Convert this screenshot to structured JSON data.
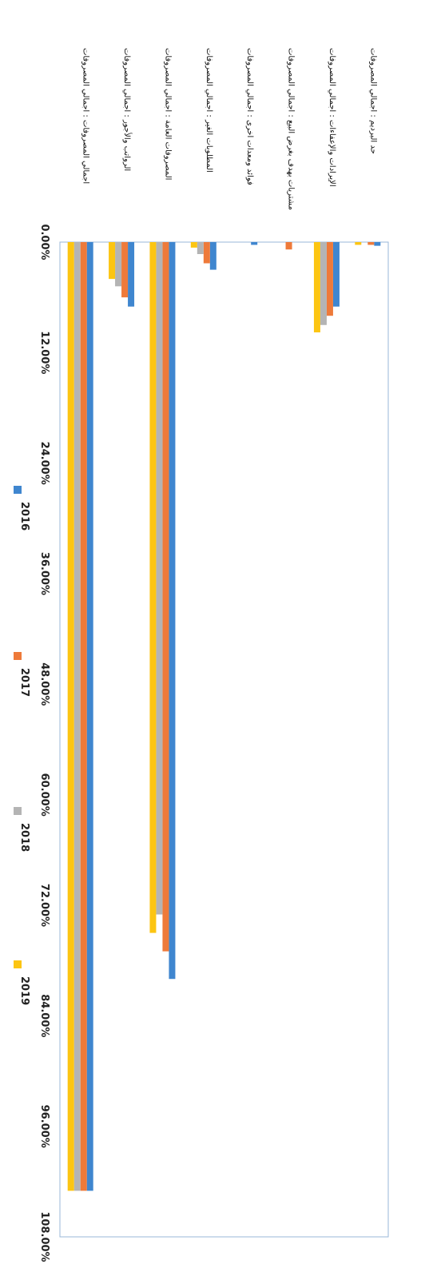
{
  "chart_data": {
    "type": "bar",
    "orientation": "horizontal",
    "title": "",
    "xlabel": "",
    "ylabel": "",
    "xlim": [
      0,
      108
    ],
    "tick_values": [
      0,
      12,
      24,
      36,
      48,
      60,
      72,
      84,
      96,
      108
    ],
    "tick_labels": [
      "0.00%",
      "12.00%",
      "24.00%",
      "36.00%",
      "48.00%",
      "60.00%",
      "72.00%",
      "84.00%",
      "96.00%",
      "108.00%"
    ],
    "grid": false,
    "legend_position": "bottom",
    "categories": [
      "حد البرديم : اجمالي المصروفات",
      "الإيرادات والإعفاءات : اجمالي المصروفات",
      "مشتريات بهدف بغرض البيع : اجمالي المصروفات",
      "فوائد ومعدات اخرى : اجمالي المصروفات",
      "المطلوبات الغير : اجمالي المصروفات",
      "المصروفات العامة : اجمالي المصروفات",
      "الرواتب والأجور : اجمالي المصروفات",
      "اجمالي المصروفات : اجمالي المصروفات"
    ],
    "series": [
      {
        "name": "2016",
        "color": "#3f86cf",
        "values": [
          0.4,
          7.0,
          0.0,
          0.3,
          3.0,
          80.0,
          7.0,
          103.0
        ]
      },
      {
        "name": "2017",
        "color": "#ee7a3a",
        "values": [
          0.3,
          8.0,
          0.8,
          0.0,
          2.3,
          77.0,
          6.0,
          103.0
        ]
      },
      {
        "name": "2018",
        "color": "#b4b4b4",
        "values": [
          0.0,
          9.0,
          0.0,
          0.0,
          1.3,
          73.0,
          4.8,
          103.0
        ]
      },
      {
        "name": "2019",
        "color": "#fcc512",
        "values": [
          0.3,
          9.8,
          0.0,
          0.0,
          0.6,
          75.0,
          4.0,
          103.0
        ]
      }
    ]
  }
}
